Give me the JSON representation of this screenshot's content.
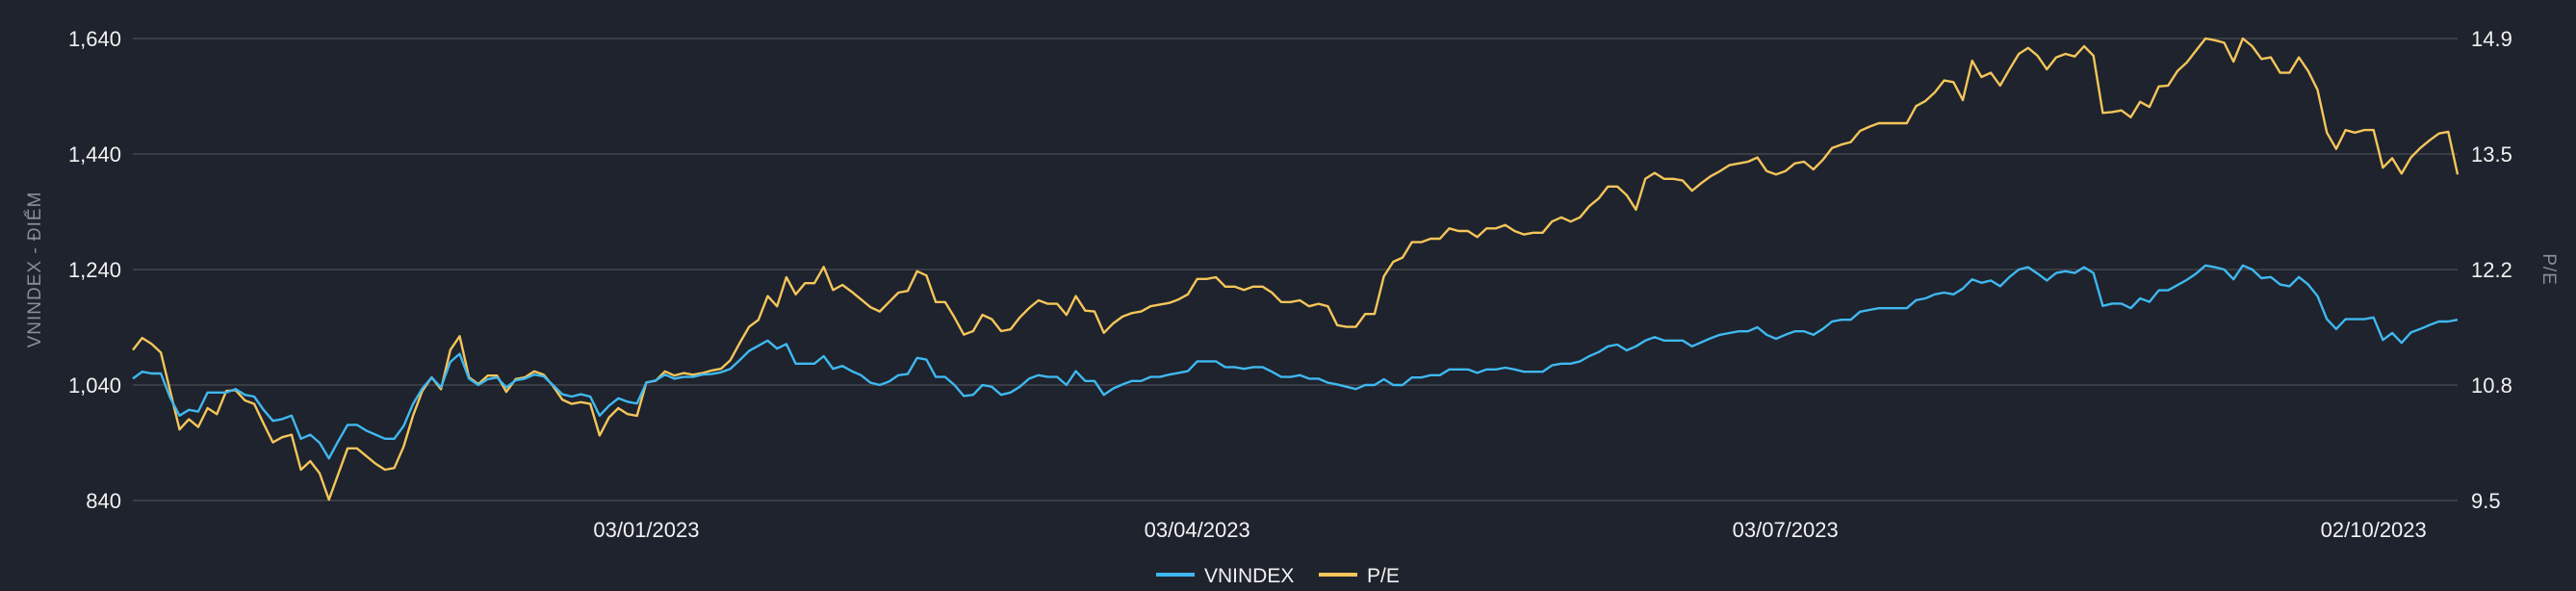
{
  "colors": {
    "background": "#1e232d",
    "grid": "#3a3d44",
    "vnindex": "#3fb8f0",
    "pe": "#f5c55a",
    "text": "#f2f2f2",
    "axis_title": "#8b8e94"
  },
  "chart_data": {
    "type": "line",
    "title": "",
    "ylabel": "VNINDEX - ĐIỂM",
    "y2label": "P/E",
    "ylim": [
      840,
      1640
    ],
    "y2lim": [
      9.5,
      14.9
    ],
    "yticks": [
      "840",
      "1,040",
      "1,240",
      "1,440",
      "1,640"
    ],
    "y2ticks": [
      "9.5",
      "10.8",
      "12.2",
      "13.5",
      "14.9"
    ],
    "grid": true,
    "legend_position": "bottom",
    "x_ticks": [
      {
        "label": "03/01/2023",
        "index": 55
      },
      {
        "label": "03/04/2023",
        "index": 114
      },
      {
        "label": "03/07/2023",
        "index": 177
      },
      {
        "label": "02/10/2023",
        "index": 240
      }
    ],
    "series": [
      {
        "name": "VNINDEX",
        "axis": "left",
        "values": [
          1051,
          1063,
          1060,
          1060,
          1018,
          987,
          997,
          994,
          1027,
          1027,
          1027,
          1033,
          1023,
          1020,
          997,
          978,
          981,
          987,
          947,
          954,
          940,
          913,
          943,
          971,
          971,
          961,
          954,
          947,
          947,
          969,
          1007,
          1034,
          1053,
          1036,
          1080,
          1094,
          1051,
          1040,
          1050,
          1053,
          1036,
          1048,
          1051,
          1058,
          1055,
          1040,
          1024,
          1020,
          1024,
          1020,
          987,
          1004,
          1017,
          1011,
          1008,
          1044,
          1048,
          1058,
          1051,
          1054,
          1054,
          1058,
          1059,
          1062,
          1068,
          1083,
          1099,
          1108,
          1117,
          1103,
          1111,
          1077,
          1077,
          1077,
          1090,
          1068,
          1073,
          1064,
          1057,
          1044,
          1040,
          1046,
          1057,
          1059,
          1087,
          1084,
          1054,
          1054,
          1040,
          1021,
          1023,
          1040,
          1037,
          1023,
          1027,
          1037,
          1051,
          1057,
          1054,
          1054,
          1040,
          1064,
          1047,
          1047,
          1023,
          1034,
          1041,
          1047,
          1047,
          1054,
          1054,
          1058,
          1061,
          1064,
          1081,
          1081,
          1081,
          1071,
          1071,
          1068,
          1071,
          1071,
          1063,
          1054,
          1054,
          1057,
          1051,
          1051,
          1044,
          1041,
          1037,
          1033,
          1040,
          1040,
          1050,
          1040,
          1040,
          1053,
          1053,
          1057,
          1057,
          1067,
          1067,
          1067,
          1061,
          1067,
          1067,
          1070,
          1067,
          1063,
          1063,
          1063,
          1074,
          1077,
          1077,
          1081,
          1090,
          1097,
          1107,
          1110,
          1100,
          1107,
          1117,
          1123,
          1117,
          1117,
          1117,
          1107,
          1114,
          1121,
          1127,
          1130,
          1133,
          1133,
          1140,
          1127,
          1120,
          1127,
          1133,
          1133,
          1127,
          1137,
          1150,
          1153,
          1153,
          1167,
          1170,
          1173,
          1173,
          1173,
          1173,
          1187,
          1190,
          1197,
          1200,
          1197,
          1207,
          1223,
          1217,
          1221,
          1211,
          1227,
          1240,
          1244,
          1233,
          1221,
          1234,
          1237,
          1234,
          1244,
          1234,
          1177,
          1181,
          1181,
          1173,
          1190,
          1184,
          1204,
          1204,
          1213,
          1222,
          1233,
          1247,
          1244,
          1240,
          1223,
          1247,
          1240,
          1225,
          1227,
          1214,
          1211,
          1227,
          1214,
          1194,
          1154,
          1137,
          1154,
          1154,
          1154,
          1157,
          1118,
          1130,
          1113,
          1131,
          1137,
          1144,
          1150,
          1150,
          1153
        ]
      },
      {
        "name": "P/E",
        "axis": "right",
        "values": [
          11.26,
          11.4,
          11.33,
          11.23,
          10.78,
          10.33,
          10.45,
          10.36,
          10.58,
          10.51,
          10.78,
          10.79,
          10.67,
          10.63,
          10.4,
          10.18,
          10.24,
          10.27,
          9.86,
          9.96,
          9.82,
          9.51,
          9.81,
          10.11,
          10.11,
          10.02,
          9.93,
          9.86,
          9.88,
          10.13,
          10.49,
          10.78,
          10.94,
          10.8,
          11.26,
          11.42,
          10.94,
          10.86,
          10.96,
          10.96,
          10.77,
          10.92,
          10.94,
          11.01,
          10.97,
          10.84,
          10.68,
          10.63,
          10.65,
          10.63,
          10.26,
          10.47,
          10.58,
          10.51,
          10.49,
          10.88,
          10.9,
          11.01,
          10.96,
          10.99,
          10.97,
          10.99,
          11.02,
          11.04,
          11.14,
          11.34,
          11.53,
          11.61,
          11.89,
          11.77,
          12.11,
          11.91,
          12.04,
          12.04,
          12.23,
          11.96,
          12.02,
          11.94,
          11.85,
          11.76,
          11.71,
          11.82,
          11.93,
          11.95,
          12.18,
          12.13,
          11.82,
          11.82,
          11.64,
          11.44,
          11.48,
          11.67,
          11.62,
          11.48,
          11.5,
          11.64,
          11.75,
          11.84,
          11.8,
          11.8,
          11.67,
          11.89,
          11.72,
          11.71,
          11.46,
          11.57,
          11.65,
          11.69,
          11.71,
          11.77,
          11.79,
          11.81,
          11.85,
          11.91,
          12.09,
          12.09,
          12.11,
          12.0,
          12.0,
          11.96,
          12.0,
          12.0,
          11.93,
          11.82,
          11.82,
          11.84,
          11.77,
          11.8,
          11.77,
          11.55,
          11.53,
          11.53,
          11.68,
          11.68,
          12.12,
          12.29,
          12.34,
          12.52,
          12.52,
          12.56,
          12.56,
          12.68,
          12.65,
          12.65,
          12.58,
          12.68,
          12.68,
          12.72,
          12.65,
          12.61,
          12.63,
          12.63,
          12.76,
          12.81,
          12.76,
          12.81,
          12.94,
          13.03,
          13.17,
          13.17,
          13.07,
          12.9,
          13.26,
          13.33,
          13.26,
          13.26,
          13.24,
          13.12,
          13.21,
          13.29,
          13.35,
          13.42,
          13.44,
          13.46,
          13.51,
          13.35,
          13.31,
          13.35,
          13.44,
          13.46,
          13.37,
          13.48,
          13.62,
          13.66,
          13.69,
          13.82,
          13.87,
          13.91,
          13.91,
          13.91,
          13.91,
          14.11,
          14.17,
          14.27,
          14.41,
          14.39,
          14.18,
          14.64,
          14.45,
          14.5,
          14.35,
          14.54,
          14.72,
          14.79,
          14.7,
          14.54,
          14.68,
          14.72,
          14.69,
          14.81,
          14.7,
          14.03,
          14.04,
          14.06,
          13.98,
          14.16,
          14.1,
          14.34,
          14.35,
          14.52,
          14.62,
          14.76,
          14.9,
          14.88,
          14.85,
          14.63,
          14.9,
          14.81,
          14.66,
          14.68,
          14.5,
          14.5,
          14.68,
          14.52,
          14.3,
          13.8,
          13.61,
          13.83,
          13.8,
          13.83,
          13.83,
          13.39,
          13.5,
          13.32,
          13.51,
          13.62,
          13.71,
          13.79,
          13.81,
          13.31
        ]
      }
    ]
  },
  "legend": {
    "items": [
      {
        "label": "VNINDEX"
      },
      {
        "label": "P/E"
      }
    ]
  }
}
